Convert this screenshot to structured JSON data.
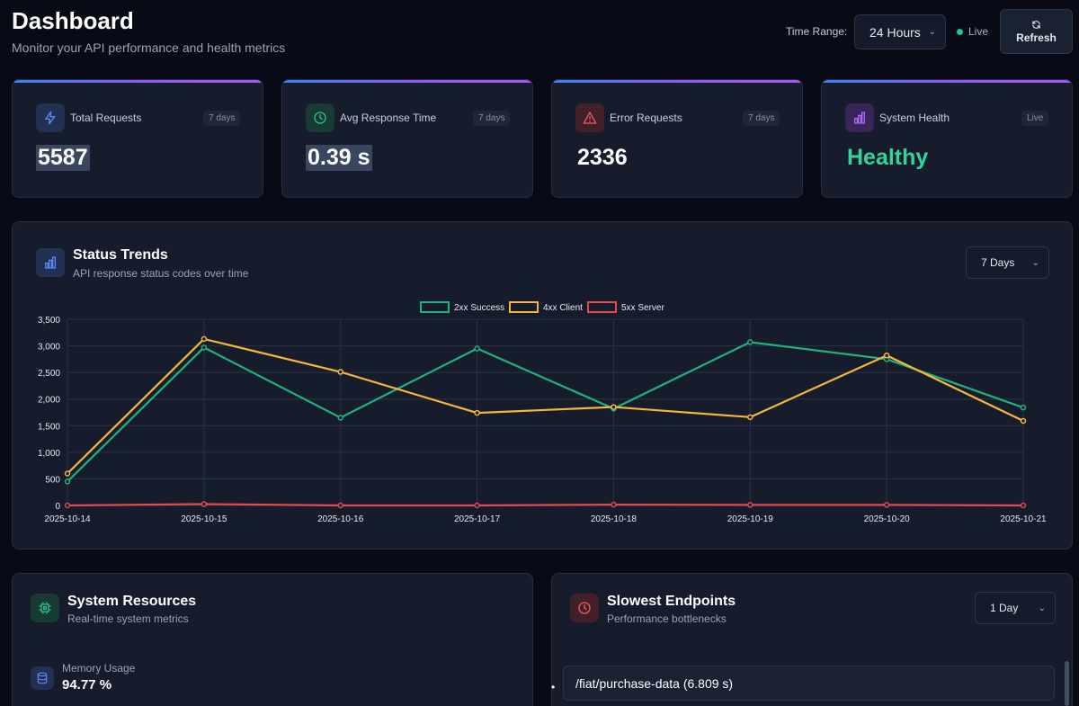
{
  "header": {
    "title": "Dashboard",
    "subtitle": "Monitor your API performance and health metrics",
    "time_range_label": "Time Range:",
    "time_range_value": "24 Hours",
    "live_label": "Live",
    "refresh_label": "Refresh"
  },
  "stats": [
    {
      "label": "Total Requests",
      "badge": "7 days",
      "value": "5587",
      "icon": "lightning-icon",
      "color": "#4f7fea"
    },
    {
      "label": "Avg Response Time",
      "badge": "7 days",
      "value": "0.39 s",
      "icon": "clock-icon",
      "color": "#2fbf8a"
    },
    {
      "label": "Error Requests",
      "badge": "7 days",
      "value": "2336",
      "icon": "warning-icon",
      "color": "#ef5a5a"
    },
    {
      "label": "System Health",
      "badge": "Live",
      "value": "Healthy",
      "icon": "bar-chart-icon",
      "color": "#a56cf0"
    }
  ],
  "status_trends": {
    "title": "Status Trends",
    "subtitle": "API response status codes over time",
    "range_value": "7 Days"
  },
  "chart_data": {
    "type": "line",
    "title": "",
    "xlabel": "",
    "ylabel": "",
    "x": [
      "2025-10-14",
      "2025-10-15",
      "2025-10-16",
      "2025-10-17",
      "2025-10-18",
      "2025-10-19",
      "2025-10-20",
      "2025-10-21"
    ],
    "ylim": [
      0,
      3500
    ],
    "yticks": [
      0,
      500,
      1000,
      1500,
      2000,
      2500,
      3000,
      3500
    ],
    "ytick_labels": [
      "0",
      "500",
      "1,000",
      "1,500",
      "2,000",
      "2,500",
      "3,000",
      "3,500"
    ],
    "legend_position": "top",
    "grid": true,
    "series": [
      {
        "name": "2xx Success",
        "color": "#22b07d",
        "values": [
          450,
          2970,
          1650,
          2950,
          1820,
          3070,
          2750,
          1840
        ]
      },
      {
        "name": "4xx Client",
        "color": "#f5b73b",
        "values": [
          600,
          3130,
          2510,
          1740,
          1850,
          1660,
          2820,
          1590
        ]
      },
      {
        "name": "5xx Server",
        "color": "#e5484d",
        "values": [
          0,
          25,
          0,
          0,
          15,
          10,
          10,
          0
        ]
      }
    ]
  },
  "system_resources": {
    "title": "System Resources",
    "subtitle": "Real-time system metrics",
    "memory_label": "Memory Usage",
    "memory_value": "94.77 %"
  },
  "slowest_endpoints": {
    "title": "Slowest Endpoints",
    "subtitle": "Performance bottlenecks",
    "range_value": "1 Day",
    "items": [
      "/fiat/purchase-data (6.809 s)"
    ]
  }
}
